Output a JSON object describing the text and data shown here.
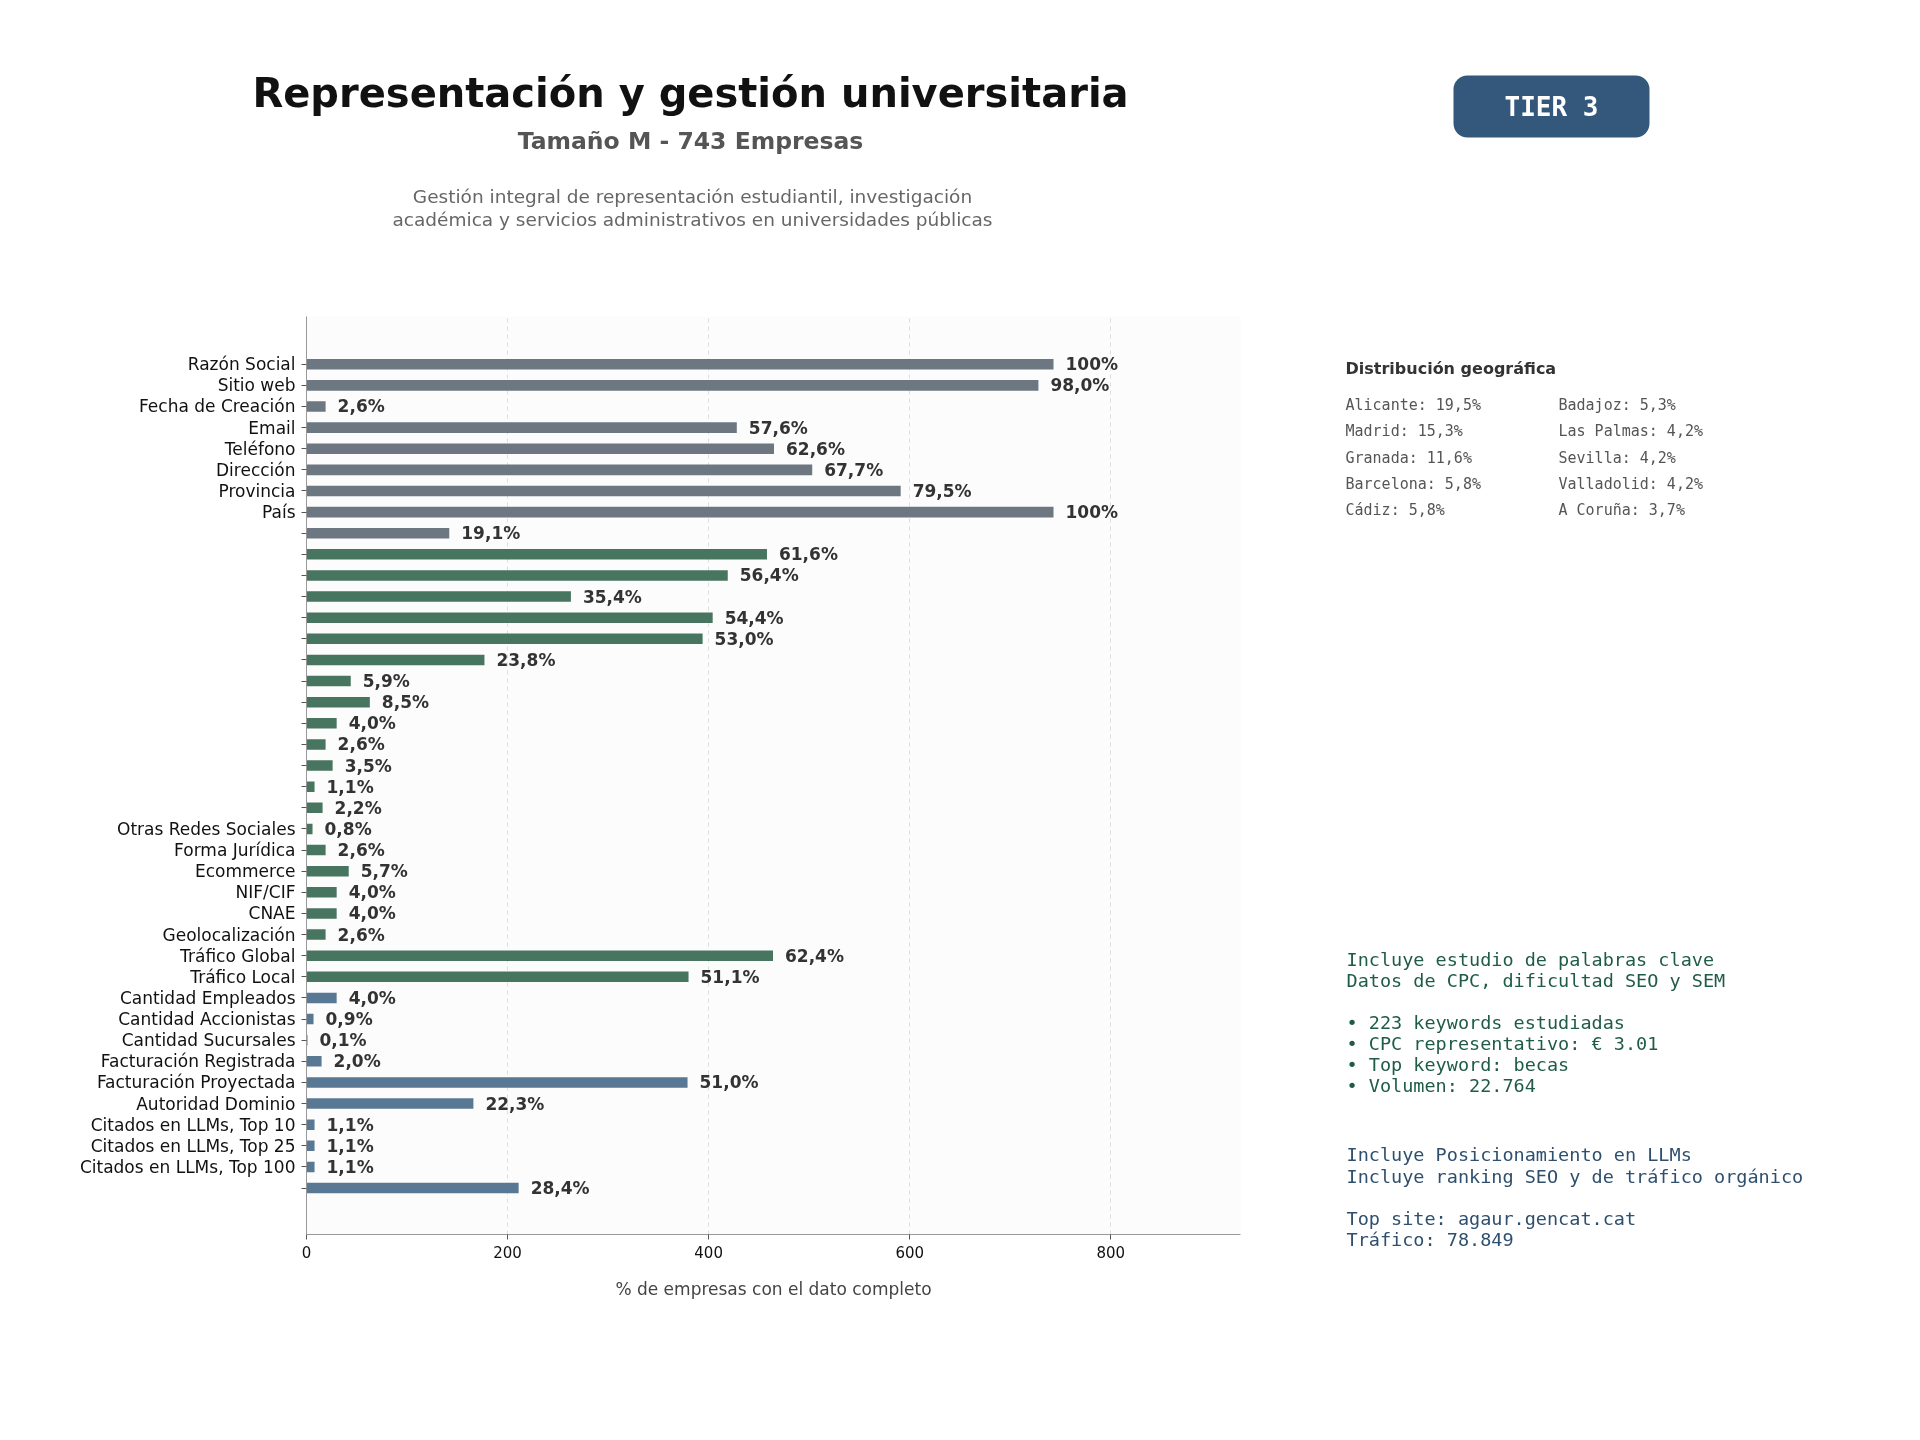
{
  "chart_data": {
    "type": "bar",
    "orientation": "horizontal",
    "title": "Representación y gestión universitaria",
    "subtitle": "Tamaño M - 743 Empresas",
    "xlabel": "% de empresas con el dato completo",
    "categories": [
      "Razón Social",
      "Sitio web",
      "Fecha de Creación",
      "Email",
      "Teléfono",
      "Dirección",
      "Provincia",
      "País",
      null,
      null,
      null,
      null,
      null,
      null,
      null,
      null,
      null,
      null,
      null,
      null,
      null,
      null,
      "Otras Redes Sociales",
      "Forma Jurídica",
      "Ecommerce",
      "NIF/CIF",
      "CNAE",
      "Geolocalización",
      "Tráfico Global",
      "Tráfico Local",
      "Cantidad Empleados",
      "Cantidad Accionistas",
      "Cantidad Sucursales",
      "Facturación Registrada",
      "Facturación Proyectada",
      "Autoridad Dominio",
      "Citados en LLMs, Top 10",
      "Citados en LLMs, Top 25",
      "Citados en LLMs, Top 100",
      null
    ],
    "values": [
      743,
      728,
      19,
      428,
      465,
      503,
      591,
      743,
      142,
      458,
      419,
      263,
      404,
      394,
      177,
      44,
      63,
      30,
      19,
      26,
      8,
      16,
      6,
      19,
      42,
      30,
      30,
      19,
      464,
      380,
      30,
      7,
      1,
      15,
      379,
      166,
      8,
      8,
      8,
      211
    ],
    "colors": [
      "#6c7782",
      "#6c7782",
      "#6c7782",
      "#6c7782",
      "#6c7782",
      "#6c7782",
      "#6c7782",
      "#6c7782",
      "#6c7782",
      "#48755f",
      "#48755f",
      "#48755f",
      "#48755f",
      "#48755f",
      "#48755f",
      "#48755f",
      "#48755f",
      "#48755f",
      "#48755f",
      "#48755f",
      "#48755f",
      "#48755f",
      "#48755f",
      "#48755f",
      "#48755f",
      "#48755f",
      "#48755f",
      "#48755f",
      "#48755f",
      "#48755f",
      "#587893",
      "#587893",
      "#587893",
      "#587893",
      "#587893",
      "#587893",
      "#587893",
      "#587893",
      "#587893",
      "#587893"
    ],
    "xlim": [
      0,
      929
    ],
    "xticks": [
      0,
      200,
      400,
      600,
      800
    ],
    "grid": "x",
    "annotations": [
      "Gestión integral de representación estudiantil, investigación",
      "académica y servicios administrativos en universidades públicas",
      "TIER 3",
      "Distribución geográfica",
      "Alicante: 19,5%",
      "Madrid: 15,3%",
      "Granada: 11,6%",
      "Barcelona: 5,8%",
      "Cádiz: 5,8%",
      "Badajoz: 5,3%",
      "Las Palmas: 4,2%",
      "Sevilla: 4,2%",
      "Valladolid: 4,2%",
      "A Coruña: 3,7%",
      "Incluye estudio de palabras clave",
      "Datos de CPC, dificultad SEO y SEM",
      "• 223 keywords estudiadas",
      "• CPC representativo: € 3.01",
      "• Top keyword: becas",
      "• Volumen: 22.764",
      "Incluye Posicionamiento en LLMs",
      "Incluye ranking SEO y de tráfico orgánico",
      "Top site: agaur.gencat.cat",
      "Tráfico: 78.849",
      {
        "text": "100%",
        "x": 743,
        "y": "Razón Social"
      },
      {
        "text": "98,0%",
        "x": 728,
        "y": "Sitio web"
      },
      {
        "text": "2,6%",
        "x": 19,
        "y": "Fecha de Creación"
      },
      {
        "text": "57,6%",
        "x": 428,
        "y": "Email"
      },
      {
        "text": "62,6%",
        "x": 465,
        "y": "Teléfono"
      },
      {
        "text": "67,7%",
        "x": 503,
        "y": "Dirección"
      },
      {
        "text": "79,5%",
        "x": 591,
        "y": "Provincia"
      },
      {
        "text": "100%",
        "x": 743,
        "y": "País"
      },
      {
        "text": "19,1%",
        "x": 142
      },
      {
        "text": "61,6%",
        "x": 458
      },
      {
        "text": "56,4%",
        "x": 419
      },
      {
        "text": "35,4%",
        "x": 263
      },
      {
        "text": "54,4%",
        "x": 404
      },
      {
        "text": "53,0%",
        "x": 394
      },
      {
        "text": "23,8%",
        "x": 177
      },
      {
        "text": "5,9%",
        "x": 44
      },
      {
        "text": "8,5%",
        "x": 63
      },
      {
        "text": "4,0%",
        "x": 30
      },
      {
        "text": "2,6%",
        "x": 19
      },
      {
        "text": "3,5%",
        "x": 26
      },
      {
        "text": "1,1%",
        "x": 8
      },
      {
        "text": "2,2%",
        "x": 16
      },
      {
        "text": "0,8%",
        "x": 6,
        "y": "Otras Redes Sociales"
      },
      {
        "text": "2,6%",
        "x": 19,
        "y": "Forma Jurídica"
      },
      {
        "text": "5,7%",
        "x": 42,
        "y": "Ecommerce"
      },
      {
        "text": "4,0%",
        "x": 30,
        "y": "NIF/CIF"
      },
      {
        "text": "4,0%",
        "x": 30,
        "y": "CNAE"
      },
      {
        "text": "2,6%",
        "x": 19,
        "y": "Geolocalización"
      },
      {
        "text": "62,4%",
        "x": 464,
        "y": "Tráfico Global"
      },
      {
        "text": "51,1%",
        "x": 380,
        "y": "Tráfico Local"
      },
      {
        "text": "4,0%",
        "x": 30,
        "y": "Cantidad Empleados"
      },
      {
        "text": "0,9%",
        "x": 7,
        "y": "Cantidad Accionistas"
      },
      {
        "text": "0,1%",
        "x": 1,
        "y": "Cantidad Sucursales"
      },
      {
        "text": "2,0%",
        "x": 15,
        "y": "Facturación Registrada"
      },
      {
        "text": "51,0%",
        "x": 379,
        "y": "Facturación Proyectada"
      },
      {
        "text": "22,3%",
        "x": 166,
        "y": "Autoridad Dominio"
      },
      {
        "text": "1,1%",
        "x": 8,
        "y": "Citados en LLMs, Top 10"
      },
      {
        "text": "1,1%",
        "x": 8,
        "y": "Citados en LLMs, Top 25"
      },
      {
        "text": "1,1%",
        "x": 8,
        "y": "Citados en LLMs, Top 100"
      },
      {
        "text": "28,4%",
        "x": 211
      }
    ]
  }
}
